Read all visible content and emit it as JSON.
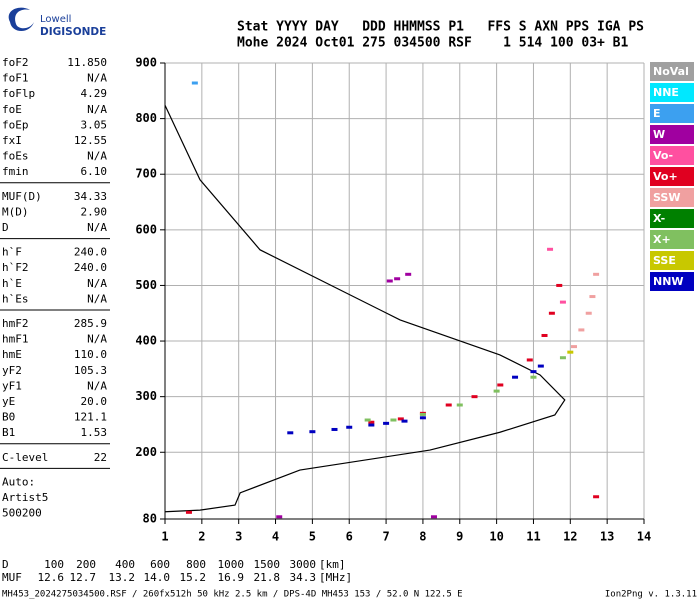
{
  "logo": {
    "top": "Lowell",
    "bottom": "DIGISONDE"
  },
  "header": {
    "lines": [
      "Stat YYYY DAY   DDD HHMMSS P1   FFS S AXN PPS IGA PS",
      "Mohe 2024 Oct01 275 034500 RSF    1 514 100 03+ B1"
    ]
  },
  "parameters": {
    "groups": [
      [
        [
          "foF2",
          "11.850"
        ],
        [
          "foF1",
          "N/A"
        ],
        [
          "foFlp",
          "4.29"
        ],
        [
          "foE",
          "N/A"
        ],
        [
          "foEp",
          "3.05"
        ],
        [
          "fxI",
          "12.55"
        ],
        [
          "foEs",
          "N/A"
        ],
        [
          "fmin",
          "6.10"
        ]
      ],
      [
        [
          "MUF(D)",
          "34.33"
        ],
        [
          "M(D)",
          "2.90"
        ],
        [
          "D",
          "N/A"
        ]
      ],
      [
        [
          "h`F",
          "240.0"
        ],
        [
          "h`F2",
          "240.0"
        ],
        [
          "h`E",
          "N/A"
        ],
        [
          "h`Es",
          "N/A"
        ]
      ],
      [
        [
          "hmF2",
          "285.9"
        ],
        [
          "hmF1",
          "N/A"
        ],
        [
          "hmE",
          "110.0"
        ],
        [
          "yF2",
          "105.3"
        ],
        [
          "yF1",
          "N/A"
        ],
        [
          "yE",
          "20.0"
        ],
        [
          "B0",
          "121.1"
        ],
        [
          "B1",
          "1.53"
        ]
      ],
      [
        [
          "C-level",
          "22"
        ]
      ],
      [
        [
          "Auto:",
          ""
        ],
        [
          "Artist5",
          ""
        ],
        [
          "500200",
          ""
        ]
      ]
    ]
  },
  "chart_data": {
    "type": "scatter",
    "xlim": [
      1,
      14
    ],
    "xticks": [
      1,
      2,
      3,
      4,
      5,
      6,
      7,
      8,
      9,
      10,
      11,
      12,
      13,
      14
    ],
    "ylim": [
      80,
      900
    ],
    "yticks": [
      80,
      200,
      300,
      400,
      500,
      600,
      700,
      800,
      900
    ],
    "grid": true,
    "profile": {
      "color": "#000000",
      "x": [
        1.0,
        1.95,
        2.9,
        3.04,
        4.66,
        8.19,
        10.09,
        11.58,
        11.85,
        11.18,
        10.09,
        7.38,
        5.75,
        3.58,
        1.95,
        1.0
      ],
      "values": [
        93,
        96,
        105,
        127,
        168,
        204,
        236,
        267,
        294,
        339,
        375,
        438,
        492,
        564,
        690,
        824
      ]
    },
    "series": [
      {
        "name": "NoVal",
        "color": "#a0a0a0",
        "x": [],
        "values": []
      },
      {
        "name": "NNE",
        "color": "#00e8ff",
        "x": [],
        "values": []
      },
      {
        "name": "E",
        "color": "#3ca0f0",
        "x": [
          1.81
        ],
        "values": [
          864
        ]
      },
      {
        "name": "W",
        "color": "#a000a0",
        "x": [
          7.1,
          7.3,
          7.6,
          4.1,
          8.3
        ],
        "values": [
          508,
          512,
          520,
          84,
          84
        ]
      },
      {
        "name": "Vo-",
        "color": "#ff50a0",
        "x": [
          11.8,
          11.45
        ],
        "values": [
          470,
          565
        ]
      },
      {
        "name": "Vo+",
        "color": "#e00020",
        "x": [
          6.6,
          7.4,
          8.0,
          8.7,
          9.4,
          10.1,
          10.9,
          11.3,
          11.5,
          11.7,
          1.65,
          12.7
        ],
        "values": [
          254,
          260,
          270,
          285,
          300,
          321,
          366,
          410,
          450,
          500,
          92,
          120
        ]
      },
      {
        "name": "SSW",
        "color": "#f0a0a0",
        "x": [
          12.1,
          12.3,
          12.5,
          12.6,
          12.7
        ],
        "values": [
          390,
          420,
          450,
          480,
          520
        ]
      },
      {
        "name": "X-",
        "color": "#008000",
        "x": [],
        "values": []
      },
      {
        "name": "X+",
        "color": "#80c060",
        "x": [
          6.5,
          7.2,
          8.0,
          9.0,
          10.0,
          11.0,
          11.8
        ],
        "values": [
          258,
          258,
          268,
          285,
          310,
          335,
          370
        ]
      },
      {
        "name": "SSE",
        "color": "#c8c800",
        "x": [
          12.0
        ],
        "values": [
          380
        ]
      },
      {
        "name": "NNW",
        "color": "#0000c0",
        "x": [
          4.4,
          5.0,
          5.6,
          6.0,
          6.6,
          7.0,
          7.5,
          8.0,
          10.5,
          11.0,
          11.2
        ],
        "values": [
          235,
          237,
          241,
          245,
          249,
          252,
          256,
          262,
          335,
          345,
          355
        ]
      }
    ]
  },
  "muf_table": {
    "rows": [
      {
        "label": "D",
        "values": [
          "100",
          "200",
          "400",
          "600",
          "800",
          "1000",
          "1500",
          "3000"
        ],
        "unit": "[km]"
      },
      {
        "label": "MUF",
        "values": [
          "12.6",
          "12.7",
          "13.2",
          "14.0",
          "15.2",
          "16.9",
          "21.8",
          "34.3"
        ],
        "unit": "[MHz]"
      }
    ]
  },
  "footer": {
    "left": "MH453_2024275034500.RSF / 260fx512h 50 kHz 2.5 km / DPS-4D MH453 153 / 52.0 N 122.5 E",
    "right": "Ion2Png v. 1.3.11"
  }
}
